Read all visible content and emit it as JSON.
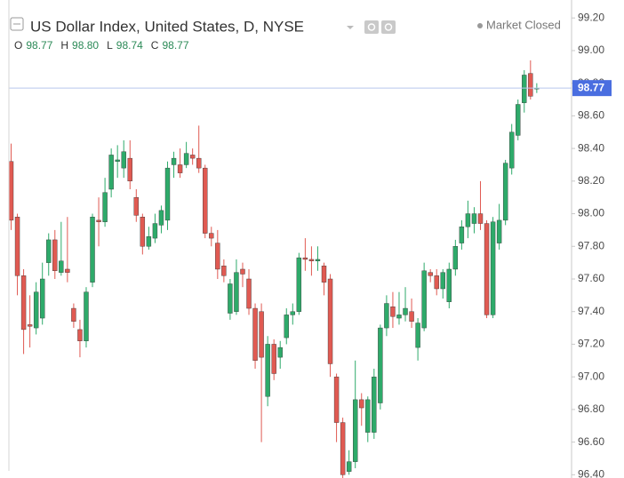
{
  "chart_data": {
    "type": "candlestick",
    "title": "US Dollar Index, United States, D, NYSE",
    "legend": [
      {
        "name": "O",
        "value": "98.77"
      },
      {
        "name": "H",
        "value": "98.80"
      },
      {
        "name": "L",
        "value": "98.74"
      },
      {
        "name": "C",
        "value": "98.77"
      }
    ],
    "status": "Market Closed",
    "last_price": 98.77,
    "up_color": "#2eaa6a",
    "down_color": "#e05a52",
    "price_line_color": "#b9c6ee",
    "price_label_color": "#4a6ee0",
    "ylim": [
      96.38,
      99.31
    ],
    "yticks": [
      {
        "value": 96.4,
        "label": "96.40"
      },
      {
        "value": 96.6,
        "label": "96.60"
      },
      {
        "value": 96.8,
        "label": "96.80"
      },
      {
        "value": 97.0,
        "label": "97.00"
      },
      {
        "value": 97.2,
        "label": "97.20"
      },
      {
        "value": 97.4,
        "label": "97.40"
      },
      {
        "value": 97.6,
        "label": "97.60"
      },
      {
        "value": 97.8,
        "label": "97.80"
      },
      {
        "value": 98.0,
        "label": "98.00"
      },
      {
        "value": 98.2,
        "label": "98.20"
      },
      {
        "value": 98.4,
        "label": "98.40"
      },
      {
        "value": 98.6,
        "label": "98.60"
      },
      {
        "value": 98.8,
        "label": "98.80"
      },
      {
        "value": 99.0,
        "label": "99.00"
      },
      {
        "value": 99.2,
        "label": "99.20"
      }
    ],
    "open": [
      98.32,
      97.98,
      97.62,
      97.32,
      97.3,
      97.36,
      97.7,
      97.84,
      97.64,
      97.66,
      97.42,
      97.29,
      97.22,
      97.58,
      97.96,
      97.95,
      98.15,
      98.32,
      98.28,
      98.34,
      98.1,
      97.98,
      97.8,
      97.85,
      97.93,
      97.96,
      98.3,
      98.3,
      98.3,
      98.36,
      98.34,
      98.28,
      97.88,
      97.82,
      97.68,
      97.39,
      97.4,
      97.66,
      97.6,
      97.42,
      97.4,
      96.88,
      97.2,
      97.12,
      97.24,
      97.38,
      97.4,
      97.73,
      97.72,
      97.71,
      97.68,
      97.6,
      97.0,
      96.72,
      96.42,
      96.48,
      96.86,
      96.66,
      96.66,
      96.84,
      97.3,
      97.43,
      97.36,
      97.38,
      97.4,
      97.18,
      97.3,
      97.64,
      97.62,
      97.54,
      97.46,
      97.66,
      97.82,
      97.92,
      97.94,
      98.0,
      97.94,
      97.38,
      97.82,
      97.96,
      98.28,
      98.48,
      98.68,
      98.86,
      98.77
    ],
    "high": [
      98.43,
      98.0,
      97.66,
      97.5,
      97.58,
      97.7,
      97.88,
      97.9,
      97.95,
      97.98,
      97.45,
      97.35,
      97.55,
      98.0,
      98.1,
      98.22,
      98.4,
      98.42,
      98.45,
      98.45,
      98.15,
      98.0,
      97.92,
      98.0,
      98.05,
      98.32,
      98.38,
      98.4,
      98.44,
      98.4,
      98.54,
      98.3,
      97.92,
      97.9,
      97.72,
      97.6,
      97.72,
      97.7,
      97.66,
      97.45,
      97.45,
      97.25,
      97.23,
      97.22,
      97.42,
      97.45,
      97.76,
      97.85,
      97.8,
      97.8,
      97.7,
      97.63,
      97.02,
      96.75,
      96.55,
      97.1,
      96.9,
      96.88,
      97.05,
      97.32,
      97.5,
      97.52,
      97.52,
      97.55,
      97.48,
      97.36,
      97.7,
      97.66,
      97.66,
      97.66,
      97.7,
      97.84,
      97.96,
      98.08,
      98.04,
      98.2,
      97.96,
      97.98,
      98.06,
      98.33,
      98.55,
      98.7,
      98.88,
      98.94,
      98.8
    ],
    "low": [
      97.9,
      97.5,
      97.14,
      97.18,
      97.26,
      97.32,
      97.62,
      97.6,
      97.62,
      97.58,
      97.3,
      97.12,
      97.18,
      97.55,
      97.8,
      97.92,
      98.1,
      98.22,
      98.22,
      98.15,
      97.95,
      97.75,
      97.78,
      97.82,
      97.88,
      97.9,
      98.22,
      98.22,
      98.28,
      98.3,
      98.25,
      97.85,
      97.8,
      97.6,
      97.58,
      97.35,
      97.38,
      97.55,
      97.38,
      97.05,
      96.6,
      96.82,
      96.98,
      97.05,
      97.2,
      97.32,
      97.38,
      97.65,
      97.62,
      97.65,
      97.5,
      97.0,
      96.6,
      96.3,
      96.4,
      96.44,
      96.7,
      96.6,
      96.62,
      96.8,
      97.25,
      97.3,
      97.32,
      97.34,
      97.3,
      97.1,
      97.28,
      97.58,
      97.5,
      97.48,
      97.42,
      97.62,
      97.78,
      97.85,
      97.88,
      97.9,
      97.36,
      97.36,
      97.78,
      97.93,
      98.24,
      98.45,
      98.62,
      98.7,
      98.74
    ],
    "close": [
      97.96,
      97.62,
      97.29,
      97.31,
      97.52,
      97.6,
      97.84,
      97.65,
      97.71,
      97.64,
      97.34,
      97.22,
      97.52,
      97.98,
      97.95,
      98.13,
      98.36,
      98.33,
      98.38,
      98.2,
      97.99,
      97.8,
      97.86,
      97.94,
      98.02,
      98.28,
      98.34,
      98.25,
      98.37,
      98.34,
      98.28,
      97.88,
      97.85,
      97.66,
      97.62,
      97.57,
      97.64,
      97.63,
      97.42,
      97.1,
      97.12,
      97.2,
      97.02,
      97.18,
      97.38,
      97.4,
      97.73,
      97.72,
      97.71,
      97.72,
      97.58,
      97.08,
      96.72,
      96.4,
      96.48,
      96.86,
      96.81,
      96.86,
      97.0,
      97.3,
      97.45,
      97.37,
      97.38,
      97.42,
      97.34,
      97.33,
      97.65,
      97.62,
      97.54,
      97.64,
      97.66,
      97.8,
      97.92,
      98.0,
      98.0,
      97.94,
      97.38,
      97.95,
      97.96,
      98.31,
      98.5,
      98.67,
      98.85,
      98.72,
      98.77
    ]
  }
}
